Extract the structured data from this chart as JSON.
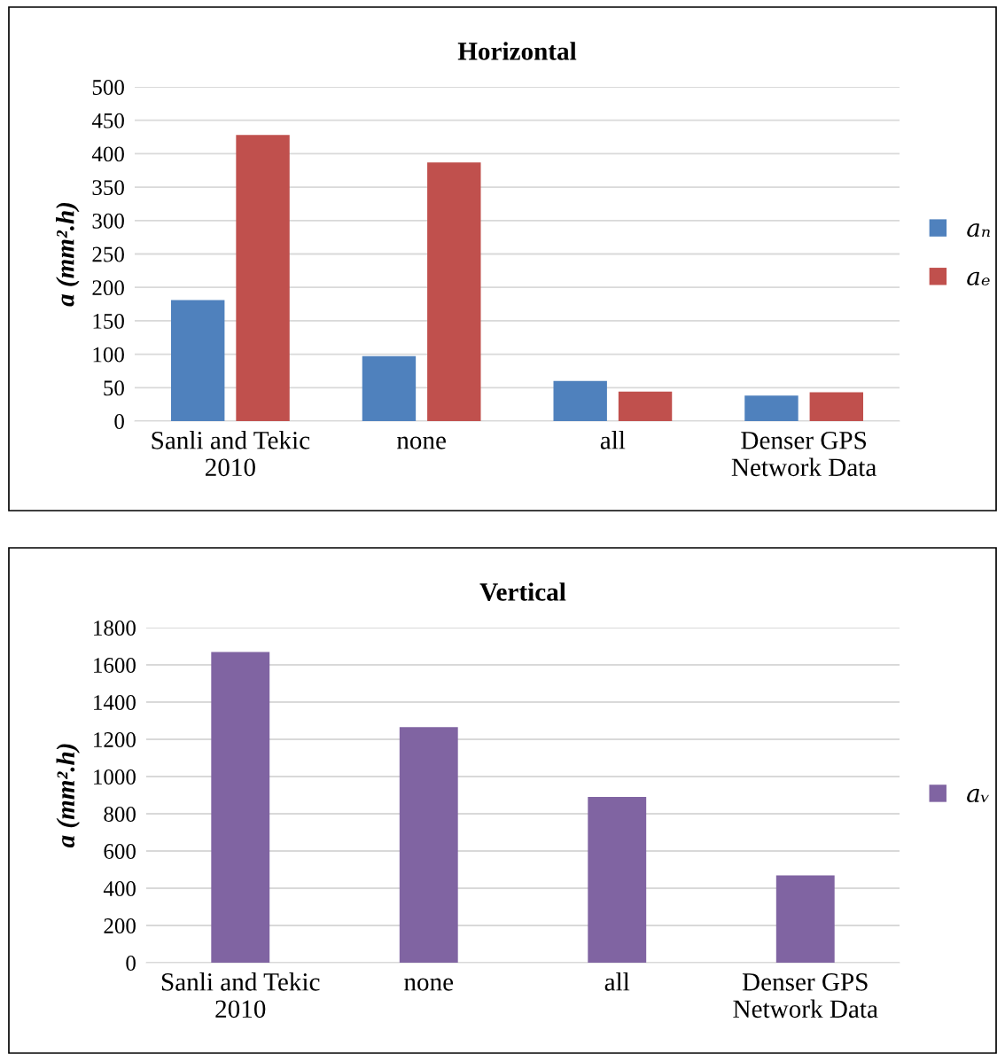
{
  "chart_data": [
    {
      "type": "bar",
      "title": "Horizontal",
      "ylabel": "a (mm².h)",
      "categories": [
        "Sanli and Tekic\n2010",
        "none",
        "all",
        "Denser GPS\nNetwork Data"
      ],
      "series": [
        {
          "name": "aₙ",
          "color": "#4f81bd",
          "values": [
            181,
            97,
            60,
            38
          ]
        },
        {
          "name": "aₑ",
          "color": "#c0504d",
          "values": [
            428,
            387,
            44,
            43
          ]
        }
      ],
      "ylim": [
        0,
        500
      ],
      "yticks": [
        0,
        50,
        100,
        150,
        200,
        250,
        300,
        350,
        400,
        450,
        500
      ],
      "grid": "y",
      "legend": "right"
    },
    {
      "type": "bar",
      "title": "Vertical",
      "ylabel": "a (mm².h)",
      "categories": [
        "Sanli and Tekic\n2010",
        "none",
        "all",
        "Denser GPS\nNetwork Data"
      ],
      "series": [
        {
          "name": "aᵥ",
          "color": "#8064a2",
          "values": [
            1669,
            1265,
            891,
            469
          ]
        }
      ],
      "ylim": [
        0,
        1800
      ],
      "yticks": [
        0,
        200,
        400,
        600,
        800,
        1000,
        1200,
        1400,
        1600,
        1800
      ],
      "grid": "y",
      "legend": "right"
    }
  ]
}
